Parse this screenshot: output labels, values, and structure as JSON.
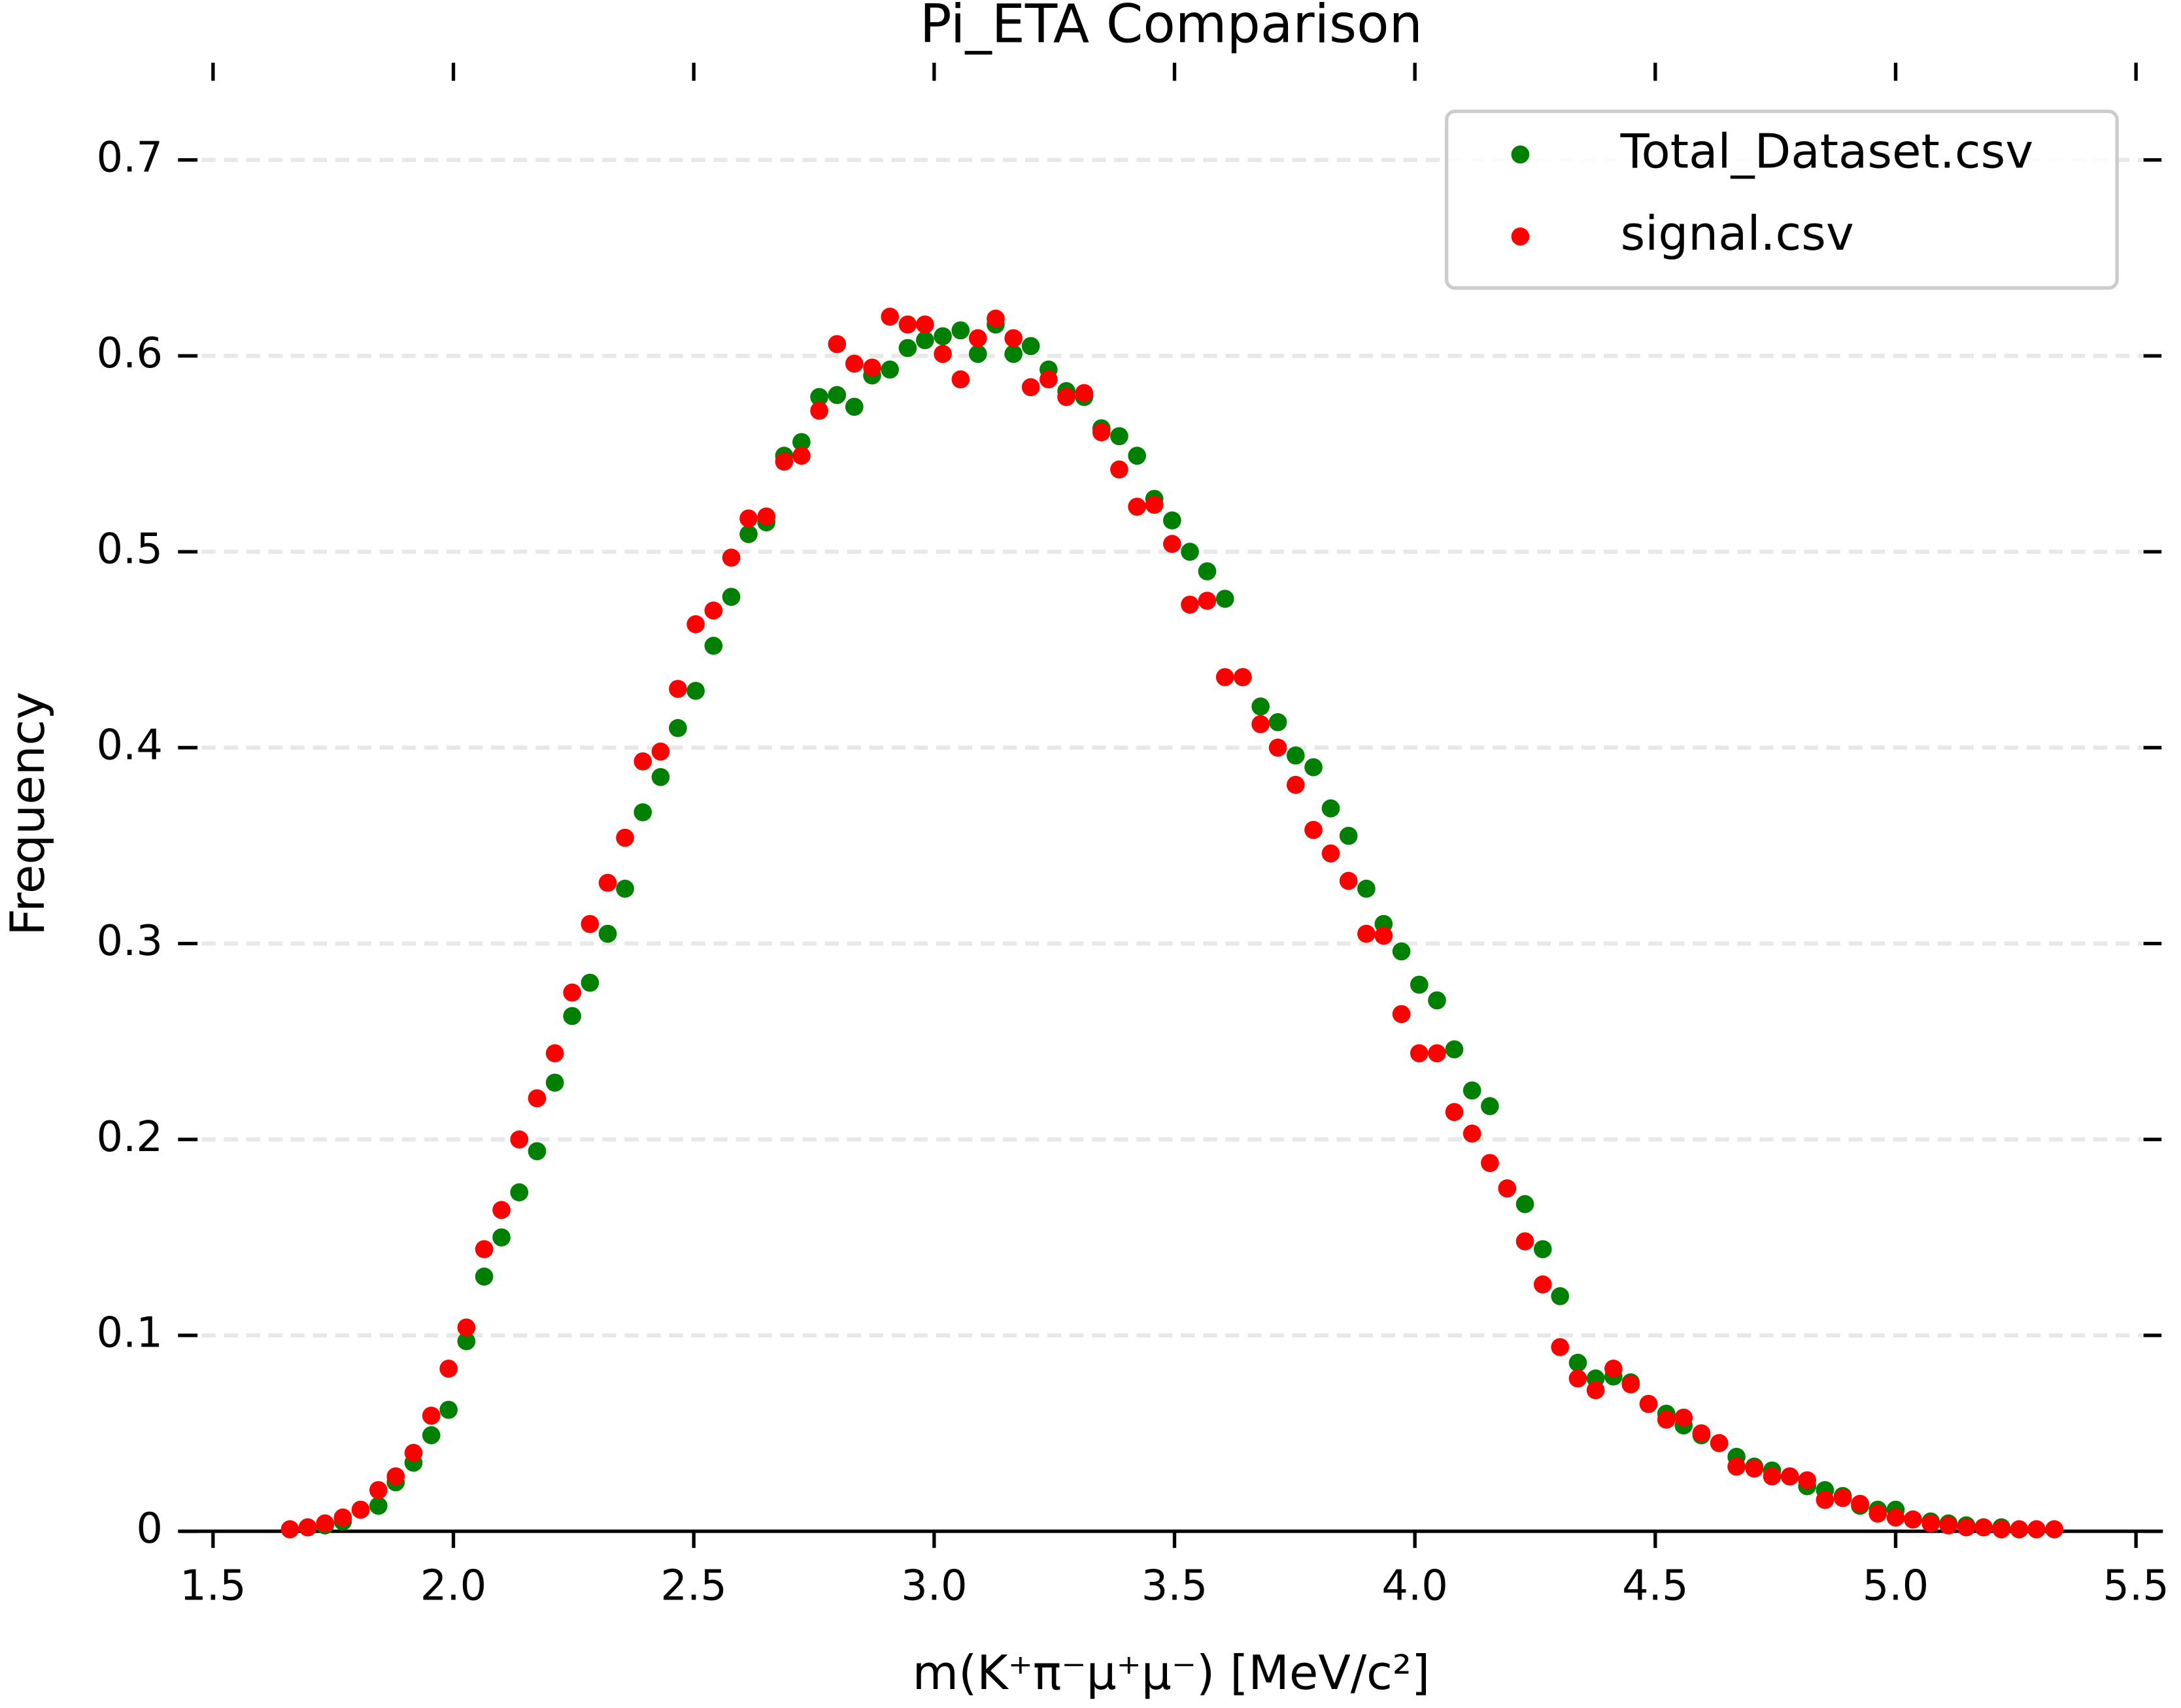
{
  "chart_data": {
    "type": "scatter",
    "title": "Pi_ETA Comparison",
    "xlabel": "m(K⁺π⁻μ⁺μ⁻) [MeV/c²]",
    "ylabel": "Frequency",
    "x": [
      1.66,
      1.697,
      1.733,
      1.77,
      1.807,
      1.844,
      1.88,
      1.917,
      1.954,
      1.99,
      2.027,
      2.064,
      2.1,
      2.137,
      2.174,
      2.211,
      2.247,
      2.284,
      2.321,
      2.357,
      2.394,
      2.431,
      2.467,
      2.504,
      2.541,
      2.578,
      2.614,
      2.651,
      2.688,
      2.724,
      2.761,
      2.798,
      2.834,
      2.871,
      2.908,
      2.945,
      2.981,
      3.018,
      3.055,
      3.091,
      3.128,
      3.165,
      3.201,
      3.238,
      3.275,
      3.312,
      3.348,
      3.385,
      3.422,
      3.458,
      3.495,
      3.532,
      3.568,
      3.605,
      3.642,
      3.679,
      3.715,
      3.752,
      3.789,
      3.825,
      3.862,
      3.899,
      3.935,
      3.972,
      4.009,
      4.046,
      4.082,
      4.119,
      4.156,
      4.192,
      4.229,
      4.266,
      4.302,
      4.339,
      4.376,
      4.413,
      4.449,
      4.486,
      4.523,
      4.559,
      4.596,
      4.633,
      4.669,
      4.706,
      4.743,
      4.78,
      4.816,
      4.853,
      4.89,
      4.926,
      4.963,
      5.0,
      5.036,
      5.073,
      5.11,
      5.147,
      5.183,
      5.22,
      5.257,
      5.293,
      5.33
    ],
    "series": [
      {
        "name": "Total_Dataset.csv",
        "color": "#008000",
        "values": [
          0.001,
          0.002,
          0.003,
          0.005,
          0.011,
          0.013,
          0.025,
          0.035,
          0.049,
          0.062,
          0.097,
          0.13,
          0.15,
          0.173,
          0.194,
          0.229,
          0.263,
          0.28,
          0.305,
          0.328,
          0.367,
          0.385,
          0.41,
          0.429,
          0.452,
          0.477,
          0.509,
          0.515,
          0.549,
          0.556,
          0.579,
          0.58,
          0.574,
          0.59,
          0.593,
          0.604,
          0.608,
          0.61,
          0.613,
          0.601,
          0.616,
          0.601,
          0.605,
          0.593,
          0.582,
          0.579,
          0.563,
          0.559,
          0.549,
          0.527,
          0.516,
          0.5,
          0.49,
          0.476,
          0.436,
          0.421,
          0.413,
          0.396,
          0.39,
          0.369,
          0.355,
          0.328,
          0.31,
          0.296,
          0.279,
          0.271,
          0.246,
          0.225,
          0.217,
          0.175,
          0.167,
          0.144,
          0.12,
          0.086,
          0.078,
          0.079,
          0.076,
          0.065,
          0.06,
          0.054,
          0.049,
          0.045,
          0.038,
          0.033,
          0.031,
          0.028,
          0.023,
          0.021,
          0.018,
          0.013,
          0.011,
          0.011,
          0.006,
          0.005,
          0.004,
          0.003,
          0.002,
          0.002,
          0.001,
          0.001,
          0.001
        ]
      },
      {
        "name": "signal.csv",
        "color": "#ff0000",
        "values": [
          0.001,
          0.002,
          0.004,
          0.007,
          0.011,
          0.021,
          0.028,
          0.04,
          0.059,
          0.083,
          0.104,
          0.144,
          0.164,
          0.2,
          0.221,
          0.244,
          0.275,
          0.31,
          0.331,
          0.354,
          0.393,
          0.398,
          0.43,
          0.463,
          0.47,
          0.497,
          0.517,
          0.518,
          0.546,
          0.549,
          0.572,
          0.606,
          0.596,
          0.594,
          0.62,
          0.616,
          0.616,
          0.601,
          0.588,
          0.609,
          0.619,
          0.609,
          0.584,
          0.588,
          0.579,
          0.581,
          0.561,
          0.542,
          0.523,
          0.524,
          0.504,
          0.473,
          0.475,
          0.436,
          0.436,
          0.412,
          0.4,
          0.381,
          0.358,
          0.346,
          0.332,
          0.305,
          0.304,
          0.264,
          0.244,
          0.244,
          0.214,
          0.203,
          0.188,
          0.175,
          0.148,
          0.126,
          0.094,
          0.078,
          0.072,
          0.083,
          0.075,
          0.065,
          0.057,
          0.058,
          0.05,
          0.045,
          0.033,
          0.032,
          0.028,
          0.028,
          0.026,
          0.016,
          0.017,
          0.014,
          0.009,
          0.007,
          0.006,
          0.004,
          0.003,
          0.002,
          0.002,
          0.001,
          0.001,
          0.001,
          0.001
        ]
      }
    ],
    "xlim": [
      1.433,
      5.556
    ],
    "ylim": [
      0,
      0.75
    ],
    "xticks": [
      {
        "value": 1.5,
        "label": "1.5"
      },
      {
        "value": 2,
        "label": "2.0"
      },
      {
        "value": 2.5,
        "label": "2.5"
      },
      {
        "value": 3,
        "label": "3.0"
      },
      {
        "value": 3.5,
        "label": "3.5"
      },
      {
        "value": 4,
        "label": "4.0"
      },
      {
        "value": 4.5,
        "label": "4.5"
      },
      {
        "value": 5,
        "label": "5.0"
      },
      {
        "value": 5.5,
        "label": "5.5"
      }
    ],
    "yticks": [
      0,
      0.1,
      0.2,
      0.3,
      0.4,
      0.5,
      0.6,
      0.7
    ],
    "grid": true,
    "legend": "upper right"
  }
}
